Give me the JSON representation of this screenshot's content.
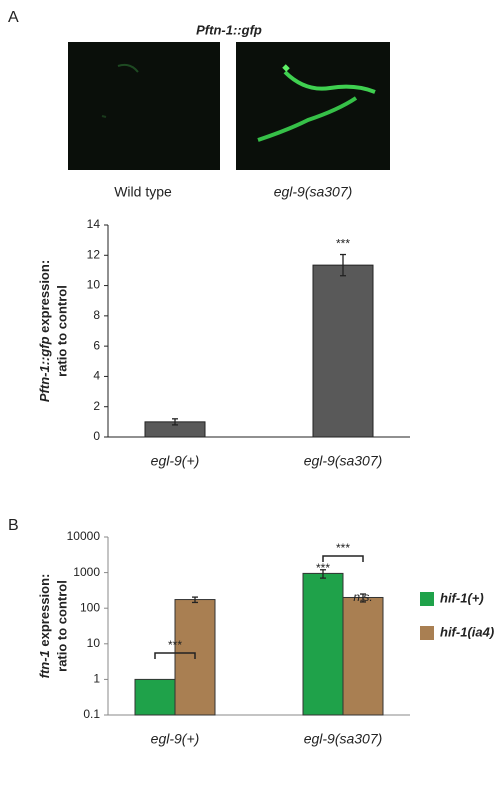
{
  "figure": {
    "panel_a": "A",
    "panel_b": "B",
    "image_title": "Pftn-1::gfp",
    "captions": [
      "Wild type",
      "egl-9(sa307)"
    ]
  },
  "chart_data": [
    {
      "type": "bar",
      "ylabel": {
        "gene": "Pftn-1::gfp",
        "line1": " expression:",
        "line2": "ratio to control"
      },
      "categories": [
        "egl-9(+)",
        "egl-9(sa307)"
      ],
      "values": [
        1.0,
        11.35
      ],
      "errors": [
        0.2,
        0.7
      ],
      "color": "#595959",
      "ylim": [
        0,
        14
      ],
      "yticks": [
        0,
        2,
        4,
        6,
        8,
        10,
        12,
        14
      ],
      "annotations": [
        "***"
      ]
    },
    {
      "type": "grouped-bar",
      "log_scale": true,
      "ylabel": {
        "gene": "ftn-1",
        "line1": " expression:",
        "line2": "ratio to control"
      },
      "categories": [
        "egl-9(+)",
        "egl-9(sa307)"
      ],
      "series": [
        {
          "name": "hif-1(+)",
          "color": "#1fa24a",
          "values": [
            1,
            950
          ],
          "errors": [
            0,
            250
          ]
        },
        {
          "name": "hif-1(ia4)",
          "color": "#a97f52",
          "values": [
            175,
            200
          ],
          "errors": [
            30,
            50
          ]
        }
      ],
      "ylim": [
        0.1,
        10000
      ],
      "yticks": [
        0.1,
        1,
        10,
        100,
        1000,
        10000
      ],
      "legend": "right",
      "annotations": [
        "***",
        "***",
        "n.s.",
        "***"
      ]
    }
  ]
}
